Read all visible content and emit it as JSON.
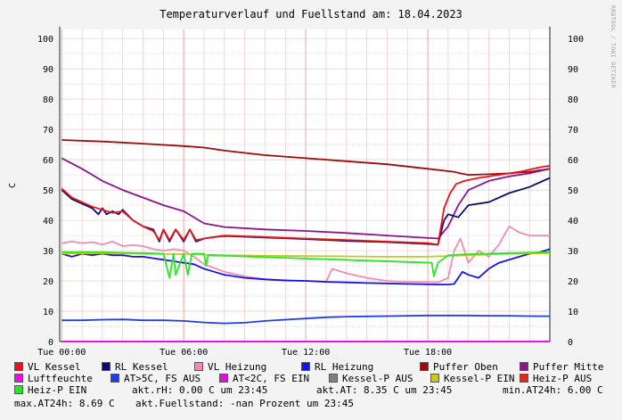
{
  "title": "Temperaturverlauf und Fuellstand am: 18.04.2023",
  "side_note": "RRDTOOL / TOBI OETIKER",
  "colors": {
    "background": "#f3f3f3",
    "plot_bg": "#ffffff",
    "grid": "#f0c4c4",
    "vl_kessel": "#e8141a",
    "rl_kessel": "#0b0b78",
    "vl_heizung": "#f08cb4",
    "rl_heizung": "#1414e8",
    "puffer_oben": "#a00a0a",
    "puffer_mitte": "#8c148c",
    "luftfeuchte": "#e614e6",
    "at_gt5": "#1e3cf0",
    "at_lt2": "#d814d8",
    "kessel_p_aus": "#808080",
    "kessel_p_ein": "#c8c81e",
    "heiz_p_aus": "#e62814",
    "heiz_p_ein": "#28e628"
  },
  "legend": [
    {
      "label": "VL Kessel",
      "color": "#e8141a"
    },
    {
      "label": "RL Kessel",
      "color": "#0b0b78"
    },
    {
      "label": "VL Heizung",
      "color": "#f08cb4"
    },
    {
      "label": "RL Heizung",
      "color": "#1414e8"
    },
    {
      "label": "Puffer Oben",
      "color": "#a00a0a"
    },
    {
      "label": "Puffer Mitte",
      "color": "#8c148c"
    },
    {
      "label": "Luftfeuchte",
      "color": "#e614e6"
    },
    {
      "label": "AT>5C, FS AUS",
      "color": "#1e3cf0"
    },
    {
      "label": "AT<2C, FS EIN",
      "color": "#d814d8"
    },
    {
      "label": "Kessel-P AUS",
      "color": "#808080"
    },
    {
      "label": "Kessel-P EIN",
      "color": "#c8c81e"
    },
    {
      "label": "Heiz-P AUS",
      "color": "#e62814"
    },
    {
      "label": "Heiz-P EIN",
      "color": "#28e628"
    }
  ],
  "info": {
    "rh": "akt.rH: 0.00 C um 23:45",
    "at": "akt.AT: 8.35 C um 23:45",
    "min_at": "min.AT24h: 6.00 C",
    "max_at": "max.AT24h: 8.69 C",
    "fuellstand": "akt.Fuellstand: -nan Prozent um 23:45"
  },
  "chart_data": {
    "type": "line",
    "title": "Temperaturverlauf und Fuellstand am: 18.04.2023",
    "ylabel": "C",
    "ylim": [
      0,
      103
    ],
    "yticks": [
      0,
      10,
      20,
      30,
      40,
      50,
      60,
      70,
      80,
      90,
      100
    ],
    "xlim_hours": [
      -0.1,
      24
    ],
    "xticks": [
      {
        "h": 0,
        "label": "Tue 00:00"
      },
      {
        "h": 6,
        "label": "Tue 06:00"
      },
      {
        "h": 12,
        "label": "Tue 12:00"
      },
      {
        "h": 18,
        "label": "Tue 18:00"
      }
    ],
    "grid": true,
    "series": [
      {
        "name": "Puffer Oben",
        "key": "puffer_oben",
        "x": [
          0,
          2,
          4,
          6,
          7,
          8,
          10,
          12,
          14,
          16,
          18,
          19.3,
          19.6,
          20,
          21,
          22,
          23,
          24
        ],
        "y": [
          66.5,
          66,
          65.3,
          64.5,
          64,
          63,
          61.5,
          60.5,
          59.5,
          58.5,
          57,
          56,
          55.5,
          55,
          55.2,
          55.5,
          56,
          57
        ]
      },
      {
        "name": "Puffer Mitte",
        "key": "puffer_mitte",
        "x": [
          0,
          1,
          2,
          3,
          4,
          5,
          6,
          7,
          8,
          10,
          12,
          14,
          16,
          18.5,
          19,
          19.5,
          20,
          21,
          22,
          23,
          24
        ],
        "y": [
          60.5,
          57,
          53,
          50,
          47.5,
          45,
          43,
          39,
          37.8,
          37,
          36.5,
          35.8,
          35,
          34,
          38,
          45,
          50,
          53,
          54.5,
          55.5,
          57
        ]
      },
      {
        "name": "RL Kessel",
        "key": "rl_kessel",
        "x": [
          0,
          0.5,
          1,
          1.5,
          1.8,
          2,
          2.2,
          2.5,
          2.8,
          3,
          3.5,
          4,
          4.5,
          4.8,
          5,
          5.3,
          5.6,
          6,
          6.3,
          6.6,
          7,
          7.5,
          8,
          10,
          12,
          14,
          16,
          18,
          18.5,
          18.8,
          19,
          19.5,
          20,
          21,
          22,
          23,
          24
        ],
        "y": [
          50,
          47,
          45.5,
          44,
          42,
          44,
          42,
          43,
          42,
          43.5,
          40,
          38,
          37,
          33,
          37,
          33,
          37,
          33,
          37,
          33,
          34,
          34.5,
          34.8,
          34.3,
          33.8,
          33.2,
          32.8,
          32.2,
          32,
          40,
          42,
          41,
          45,
          46,
          49,
          51,
          54
        ]
      },
      {
        "name": "VL Kessel",
        "key": "vl_kessel",
        "x": [
          0,
          0.5,
          1,
          1.5,
          2,
          2.5,
          3,
          3.5,
          4,
          4.5,
          4.8,
          5,
          5.3,
          5.6,
          6,
          6.3,
          6.6,
          7,
          7.5,
          8,
          10,
          12,
          14,
          16,
          18,
          18.5,
          18.8,
          19.1,
          19.4,
          19.8,
          20.5,
          21.5,
          22.5,
          23.5,
          24
        ],
        "y": [
          50.5,
          47.5,
          46,
          44.5,
          43.5,
          42.5,
          43,
          40,
          38,
          36.5,
          33.5,
          37,
          33.5,
          37,
          33.5,
          37,
          33.5,
          34,
          34.5,
          35,
          34.5,
          34,
          33.5,
          33,
          32.5,
          32,
          44,
          49,
          52,
          53,
          54,
          55,
          56,
          57.5,
          58
        ]
      },
      {
        "name": "VL Heizung",
        "key": "vl_heizung",
        "x": [
          0,
          0.5,
          1,
          1.5,
          2,
          2.5,
          3,
          3.5,
          4,
          4.5,
          5,
          5.5,
          6,
          6.5,
          7,
          8,
          9,
          10,
          11,
          12,
          13,
          13.3,
          14,
          15,
          16,
          17,
          18.5,
          19,
          19.3,
          19.6,
          20,
          20.5,
          21,
          21.5,
          22,
          22.5,
          23,
          23.5,
          24
        ],
        "y": [
          32.5,
          33,
          32.5,
          32.8,
          32,
          33,
          31.5,
          31.8,
          31.5,
          30.5,
          30,
          30.5,
          30,
          28,
          25.5,
          23,
          21.5,
          20.5,
          20,
          20,
          19.8,
          24,
          22.5,
          21,
          20,
          19.7,
          19.5,
          21,
          30,
          34,
          26,
          30,
          28,
          32,
          38,
          36,
          35,
          35,
          35
        ]
      },
      {
        "name": "RL Heizung",
        "key": "rl_heizung",
        "x": [
          0,
          0.5,
          1,
          1.5,
          2,
          2.5,
          3,
          3.5,
          4,
          4.5,
          5,
          5.5,
          6,
          6.5,
          7,
          7.5,
          8,
          9,
          10,
          11,
          12,
          13,
          14,
          15,
          16,
          17,
          18.5,
          19,
          19.3,
          19.7,
          20,
          20.5,
          21,
          21.5,
          22,
          22.5,
          23,
          23.5,
          24
        ],
        "y": [
          29,
          28,
          29,
          28.5,
          29,
          28.5,
          28.5,
          28,
          28,
          27.5,
          27,
          26.5,
          26,
          25.5,
          24,
          23,
          22,
          21,
          20.5,
          20.2,
          20,
          19.7,
          19.5,
          19.3,
          19.2,
          19,
          18.8,
          18.8,
          19,
          23,
          22,
          21,
          24,
          26,
          27,
          28,
          29,
          29.5,
          30.5
        ]
      },
      {
        "name": "Kessel-P EIN",
        "key": "kessel_p_ein",
        "x": [
          0,
          2,
          4,
          6,
          8,
          10,
          12,
          14,
          16,
          18,
          20,
          22,
          24
        ],
        "y": [
          29,
          29.2,
          29,
          28.8,
          28.5,
          28.3,
          28.2,
          28.1,
          28,
          28,
          28.5,
          29,
          29.2
        ]
      },
      {
        "name": "Heiz-P EIN",
        "key": "heiz_p_ein",
        "x": [
          0,
          1,
          2,
          3,
          4,
          5,
          5.3,
          5.5,
          5.6,
          6,
          6.2,
          6.4,
          7,
          7.1,
          7.2,
          18.2,
          18.3,
          18.5,
          19,
          19.3,
          19.5,
          20,
          22,
          24
        ],
        "y": [
          29.5,
          29.5,
          29.5,
          29.3,
          29.2,
          29,
          21,
          29,
          22,
          29,
          22,
          29,
          29,
          25,
          28.5,
          26,
          21.5,
          26,
          28.5,
          28.5,
          28.7,
          28.8,
          29.2,
          29.5
        ]
      },
      {
        "name": "AT>5C, FS AUS",
        "key": "at_gt5",
        "x": [
          0,
          1,
          2,
          3,
          4,
          5,
          6,
          7,
          8,
          9,
          10,
          11,
          12,
          13,
          14,
          15,
          16,
          17,
          18,
          19,
          20,
          21,
          22,
          23,
          24
        ],
        "y": [
          7,
          7,
          7.2,
          7.3,
          7,
          7,
          6.8,
          6.3,
          6,
          6.2,
          6.8,
          7.2,
          7.6,
          8,
          8.2,
          8.3,
          8.4,
          8.5,
          8.6,
          8.6,
          8.6,
          8.5,
          8.5,
          8.4,
          8.35
        ]
      },
      {
        "name": "Luftfeuchte",
        "key": "luftfeuchte",
        "x": [
          0,
          24
        ],
        "y": [
          0,
          0
        ]
      }
    ]
  }
}
